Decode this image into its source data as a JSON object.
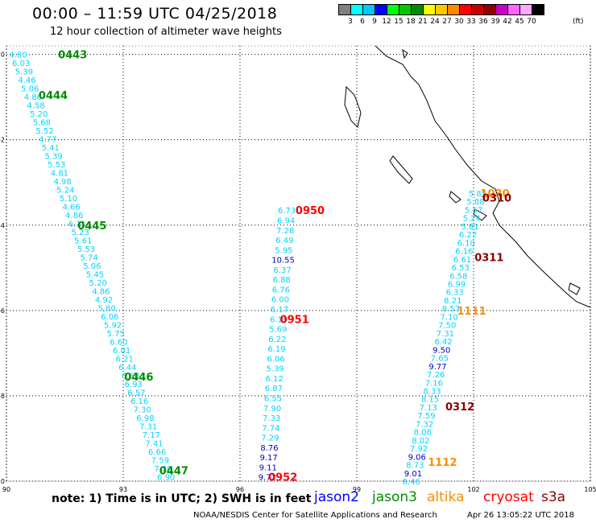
{
  "header": {
    "title": "00:00 – 11:59 UTC 04/25/2018",
    "subtitle": "12 hour collection of altimeter wave heights"
  },
  "color_scale": {
    "units": "(ft)",
    "bins": [
      {
        "label": "3",
        "color": "#808080"
      },
      {
        "label": "6",
        "color": "#00ffff"
      },
      {
        "label": "9",
        "color": "#00c8ff"
      },
      {
        "label": "12",
        "color": "#0000ff"
      },
      {
        "label": "15",
        "color": "#00ff00"
      },
      {
        "label": "18",
        "color": "#00c800"
      },
      {
        "label": "21",
        "color": "#008c00"
      },
      {
        "label": "24",
        "color": "#ffff00"
      },
      {
        "label": "27",
        "color": "#ffc800"
      },
      {
        "label": "30",
        "color": "#ff8c00"
      },
      {
        "label": "33",
        "color": "#ff0000"
      },
      {
        "label": "36",
        "color": "#c80000"
      },
      {
        "label": "39",
        "color": "#8c0000"
      },
      {
        "label": "42",
        "color": "#c800c8"
      },
      {
        "label": "45",
        "color": "#ff64ff"
      },
      {
        "label": "70",
        "color": "#ffaaff"
      },
      {
        "label": "",
        "color": "#000000"
      }
    ]
  },
  "axes": {
    "lon_ticks": [
      "90",
      "93",
      "96",
      "99",
      "102",
      "105"
    ],
    "lat_ticks": [
      "0",
      "-2",
      "-4",
      "-6",
      "-8",
      "-10"
    ],
    "lon_range": [
      90,
      105
    ],
    "lat_range": [
      -10,
      0.2
    ]
  },
  "tracks": [
    {
      "name": "track1",
      "color": "#00d4ff",
      "start": [
        90.3,
        0.0
      ],
      "end": [
        94.1,
        -9.9
      ],
      "values": [
        "4.80",
        "6.03",
        "5.39",
        "4.46",
        "5.06",
        "4.86",
        "4.58",
        "5.20",
        "5.68",
        "5.52",
        "4.77",
        "5.41",
        "5.39",
        "5.53",
        "4.81",
        "4.98",
        "5.24",
        "5.10",
        "4.66",
        "4.86",
        "6.11",
        "5.23",
        "5.61",
        "5.53",
        "5.74",
        "5.06",
        "5.45",
        "5.20",
        "4.86",
        "4.92",
        "5.80",
        "6.06",
        "5.92",
        "5.75",
        "6.60",
        "6.01",
        "6.21",
        "6.44",
        "6.63",
        "6.93",
        "6.57",
        "6.16",
        "7.30",
        "6.98",
        "7.31",
        "7.17",
        "7.41",
        "6.66",
        "7.59",
        "7.30",
        "6.90"
      ],
      "highlight": []
    },
    {
      "name": "track2",
      "color": "#00d4ff",
      "start": [
        97.2,
        -3.65
      ],
      "end": [
        96.7,
        -9.9
      ],
      "values": [
        "6.73",
        "6.94",
        "7.28",
        "6.49",
        "5.95",
        "10.55",
        "6.37",
        "6.88",
        "6.76",
        "6.00",
        "6.17",
        "6.19",
        "5.69",
        "6.22",
        "6.19",
        "6.06",
        "5.39",
        "6.12",
        "6.87",
        "6.55",
        "7.90",
        "7.33",
        "7.74",
        "7.29",
        "8.76",
        "9.17",
        "9.11",
        "9.72"
      ],
      "highlight": [
        5,
        24,
        25,
        26,
        27
      ]
    },
    {
      "name": "track3",
      "color": "#00d4ff",
      "start": [
        102.1,
        -3.25
      ],
      "end": [
        100.4,
        -10.0
      ],
      "values": [
        "5.85",
        "5.88",
        "5.67",
        "5.24",
        "5.81",
        "6.22",
        "6.10",
        "6.16",
        "6.61",
        "6.53",
        "6.58",
        "6.99",
        "6.33",
        "8.21",
        "8.53",
        "7.10",
        "7.50",
        "7.31",
        "6.42",
        "9.50",
        "7.65",
        "9.77",
        "7.26",
        "7.16",
        "8.33",
        "8.15",
        "7.13",
        "7.59",
        "7.32",
        "8.08",
        "8.02",
        "7.92",
        "9.06",
        "8.73",
        "9.01",
        "8.46"
      ],
      "highlight": [
        19,
        21,
        32,
        34
      ]
    }
  ],
  "pass_labels": [
    {
      "text": "0443",
      "color": "#008c00",
      "lon": 91.7,
      "lat": 0.0
    },
    {
      "text": "0444",
      "color": "#008c00",
      "lon": 91.2,
      "lat": -0.95
    },
    {
      "text": "0445",
      "color": "#008c00",
      "lon": 92.2,
      "lat": -4.0
    },
    {
      "text": "0446",
      "color": "#008c00",
      "lon": 93.4,
      "lat": -7.55
    },
    {
      "text": "0447",
      "color": "#008c00",
      "lon": 94.3,
      "lat": -9.75
    },
    {
      "text": "0950",
      "color": "#ff0000",
      "lon": 97.8,
      "lat": -3.65
    },
    {
      "text": "0951",
      "color": "#ff0000",
      "lon": 97.4,
      "lat": -6.2
    },
    {
      "text": "0952",
      "color": "#ff0000",
      "lon": 97.1,
      "lat": -9.9
    },
    {
      "text": "1030",
      "color": "#ff8c00",
      "lon": 102.55,
      "lat": -3.25
    },
    {
      "text": "0310",
      "color": "#8b0000",
      "lon": 102.6,
      "lat": -3.35
    },
    {
      "text": "0311",
      "color": "#8b0000",
      "lon": 102.4,
      "lat": -4.75
    },
    {
      "text": "1111",
      "color": "#ff8c00",
      "lon": 101.95,
      "lat": -6.0
    },
    {
      "text": "0312",
      "color": "#8b0000",
      "lon": 101.65,
      "lat": -8.25
    },
    {
      "text": "1112",
      "color": "#ff8c00",
      "lon": 101.2,
      "lat": -9.55
    }
  ],
  "footer": {
    "note": "note: 1) Time is in UTC; 2) SWH is in feet",
    "missions": [
      {
        "name": "jason2",
        "color": "#0000ff"
      },
      {
        "name": "jason3",
        "color": "#008c00"
      },
      {
        "name": "altika",
        "color": "#ff8c00"
      },
      {
        "name": "cryosat",
        "color": "#ff0000"
      },
      {
        "name": "s3a",
        "color": "#8b0000"
      }
    ],
    "credit": "NOAA/NESDIS Center for Satellite Applications and Research",
    "timestamp": "Apr 26 13:05:22 UTC 2018"
  }
}
